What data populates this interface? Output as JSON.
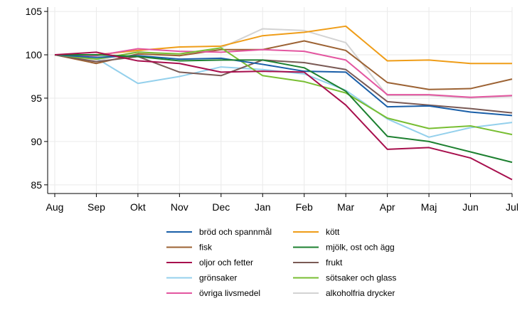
{
  "chart_data": {
    "type": "line",
    "title": "",
    "xlabel": "",
    "ylabel": "",
    "categories": [
      "Aug",
      "Sep",
      "Okt",
      "Nov",
      "Dec",
      "Jan",
      "Feb",
      "Mar",
      "Apr",
      "Maj",
      "Jun",
      "Jul"
    ],
    "y_ticks": [
      85,
      90,
      95,
      100,
      105
    ],
    "ylim": [
      84,
      105.5
    ],
    "grid": true,
    "legend_position": "bottom",
    "series": [
      {
        "name": "bröd och spannmål",
        "color": "#1a5fa8",
        "values": [
          100,
          99.7,
          99.9,
          99.5,
          99.6,
          98.9,
          98.1,
          98.0,
          94.0,
          94.1,
          93.4,
          93.0
        ]
      },
      {
        "name": "kött",
        "color": "#ef9d18",
        "values": [
          100,
          100.0,
          100.5,
          100.9,
          101.0,
          102.2,
          102.6,
          103.3,
          99.3,
          99.4,
          99.0,
          99.0
        ]
      },
      {
        "name": "fisk",
        "color": "#9c6233",
        "values": [
          100,
          99.0,
          100.1,
          99.9,
          100.6,
          100.6,
          101.6,
          100.5,
          96.8,
          96.0,
          96.1,
          97.2
        ]
      },
      {
        "name": "mjölk, ost och ägg",
        "color": "#1d8030",
        "values": [
          100,
          100.0,
          99.8,
          99.3,
          99.4,
          99.4,
          98.5,
          95.8,
          90.6,
          90.0,
          88.8,
          87.6
        ]
      },
      {
        "name": "oljor och fetter",
        "color": "#a70f4d",
        "values": [
          100,
          100.3,
          99.3,
          99.0,
          98.0,
          98.1,
          98.0,
          94.2,
          89.1,
          89.3,
          88.1,
          85.6
        ]
      },
      {
        "name": "frukt",
        "color": "#7a5a55",
        "values": [
          100,
          99.2,
          99.8,
          98.0,
          97.6,
          99.4,
          99.1,
          98.3,
          94.6,
          94.2,
          93.8,
          93.3
        ]
      },
      {
        "name": "grönsaker",
        "color": "#94d0ec",
        "values": [
          100,
          99.6,
          96.7,
          97.5,
          98.6,
          98.3,
          97.8,
          95.9,
          92.6,
          90.5,
          91.6,
          92.2
        ]
      },
      {
        "name": "sötsaker och glass",
        "color": "#78be32",
        "values": [
          100,
          99.5,
          100.3,
          100.1,
          100.8,
          97.6,
          96.9,
          95.6,
          92.7,
          91.5,
          91.8,
          90.8
        ]
      },
      {
        "name": "övriga livsmedel",
        "color": "#e356a0",
        "values": [
          100,
          99.9,
          100.7,
          100.4,
          100.3,
          100.6,
          100.4,
          99.4,
          95.4,
          95.4,
          95.1,
          95.3
        ]
      },
      {
        "name": "alkoholfria drycker",
        "color": "#d3d3d3",
        "values": [
          100,
          99.3,
          100.4,
          99.9,
          100.8,
          103.0,
          102.8,
          101.4,
          95.3,
          95.3,
          95.0,
          95.2
        ]
      }
    ]
  }
}
